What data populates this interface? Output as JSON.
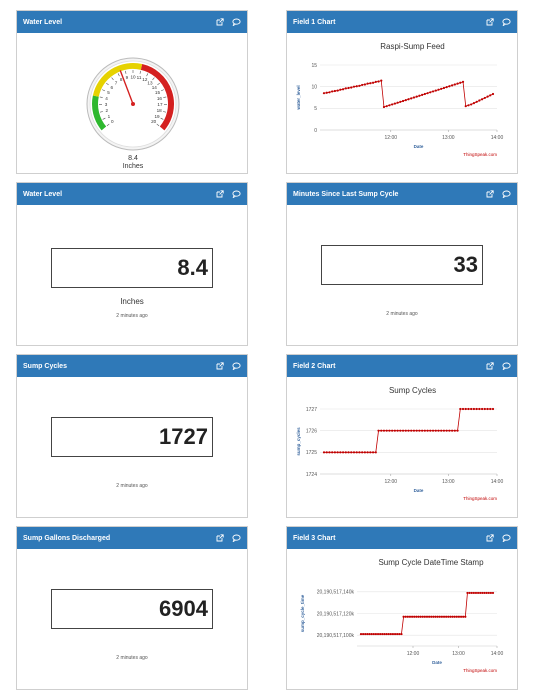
{
  "widgets": {
    "gauge": {
      "title": "Water Level",
      "value": "8.4",
      "units": "Inches",
      "ticks": [
        "0",
        "1",
        "2",
        "3",
        "4",
        "5",
        "6",
        "7",
        "8",
        "9",
        "10",
        "11",
        "12",
        "13",
        "14",
        "15",
        "16",
        "17",
        "18",
        "19",
        "20"
      ]
    },
    "field1": {
      "title": "Field 1 Chart",
      "chart_title": "Raspi-Sump Feed",
      "ylabel": "water_level",
      "xlabel": "Date",
      "credit": "ThingSpeak.com",
      "yticks": [
        "15",
        "10",
        "5",
        "0"
      ],
      "xticks": [
        "12:00",
        "13:00",
        "14:00"
      ]
    },
    "numeric_level": {
      "title": "Water Level",
      "value": "8.4",
      "units": "Inches",
      "ago": "2 minutes ago"
    },
    "minutes": {
      "title": "Minutes Since Last Sump Cycle",
      "value": "33",
      "ago": "2 minutes ago"
    },
    "cycles": {
      "title": "Sump Cycles",
      "value": "1727",
      "ago": "2 minutes ago"
    },
    "field2": {
      "title": "Field 2 Chart",
      "chart_title": "Sump Cycles",
      "ylabel": "sump_cycles",
      "xlabel": "Date",
      "credit": "ThingSpeak.com",
      "yticks": [
        "1727",
        "1726",
        "1725",
        "1724"
      ],
      "xticks": [
        "12:00",
        "13:00",
        "14:00"
      ]
    },
    "gallons": {
      "title": "Sump Gallons Discharged",
      "value": "6904",
      "ago": "2 minutes ago"
    },
    "field3": {
      "title": "Field 3 Chart",
      "chart_title": "Sump Cycle DateTime Stamp",
      "ylabel": "sump_cycle_time",
      "xlabel": "Date",
      "credit": "ThingSpeak.com",
      "yticks": [
        "20,190,517,140k",
        "20,190,517,120k",
        "20,190,517,100k"
      ],
      "xticks": [
        "12:00",
        "13:00",
        "14:00"
      ]
    }
  },
  "icons": {
    "external": "external-link-icon",
    "comment": "comment-icon"
  },
  "colors": {
    "header": "#2f79b8",
    "series": "#c00000",
    "green": "#2eb82e",
    "yellow": "#e6d200",
    "red": "#d42020"
  },
  "chart_data": [
    {
      "type": "line",
      "title": "Raspi-Sump Feed",
      "ylabel": "water_level",
      "xlabel": "Date",
      "ylim": [
        0,
        15
      ],
      "x_ticks": [
        "12:00",
        "13:00",
        "14:00"
      ],
      "series": [
        {
          "values": [
            8.5,
            8.6,
            8.7,
            8.9,
            9.0,
            9.1,
            9.3,
            9.4,
            9.6,
            9.7,
            9.8,
            10.0,
            10.1,
            10.2,
            10.4,
            10.5,
            10.7,
            10.8,
            10.9,
            11.1,
            11.2,
            11.4,
            5.3,
            5.5,
            5.7,
            5.9,
            6.1,
            6.3,
            6.5,
            6.7,
            6.9,
            7.1,
            7.3,
            7.5,
            7.7,
            7.9,
            8.1,
            8.3,
            8.5,
            8.7,
            8.9,
            9.1,
            9.3,
            9.5,
            9.7,
            9.9,
            10.1,
            10.3,
            10.5,
            10.7,
            10.9,
            11.1,
            5.5,
            5.7,
            5.9,
            6.2,
            6.5,
            6.8,
            7.1,
            7.4,
            7.7,
            8.0,
            8.3
          ]
        }
      ]
    },
    {
      "type": "line",
      "title": "Sump Cycles",
      "ylabel": "sump_cycles",
      "xlabel": "Date",
      "ylim": [
        1724,
        1727
      ],
      "x_ticks": [
        "12:00",
        "13:00",
        "14:00"
      ],
      "series": [
        {
          "values": [
            1725,
            1725,
            1725,
            1725,
            1725,
            1725,
            1725,
            1725,
            1725,
            1725,
            1725,
            1725,
            1725,
            1725,
            1725,
            1725,
            1725,
            1725,
            1725,
            1725,
            1726,
            1726,
            1726,
            1726,
            1726,
            1726,
            1726,
            1726,
            1726,
            1726,
            1726,
            1726,
            1726,
            1726,
            1726,
            1726,
            1726,
            1726,
            1726,
            1726,
            1726,
            1726,
            1726,
            1726,
            1726,
            1726,
            1726,
            1726,
            1726,
            1726,
            1727,
            1727,
            1727,
            1727,
            1727,
            1727,
            1727,
            1727,
            1727,
            1727,
            1727,
            1727,
            1727
          ]
        }
      ]
    },
    {
      "type": "line",
      "title": "Sump Cycle DateTime Stamp",
      "ylabel": "sump_cycle_time",
      "xlabel": "Date",
      "ylim": [
        20190517090000,
        20190517150000
      ],
      "x_ticks": [
        "12:00",
        "13:00",
        "14:00"
      ],
      "series": [
        {
          "values": [
            20190517101000,
            20190517101000,
            20190517101000,
            20190517101000,
            20190517101000,
            20190517101000,
            20190517101000,
            20190517101000,
            20190517101000,
            20190517101000,
            20190517101000,
            20190517101000,
            20190517101000,
            20190517101000,
            20190517101000,
            20190517101000,
            20190517101000,
            20190517101000,
            20190517101000,
            20190517101000,
            20190517117000,
            20190517117000,
            20190517117000,
            20190517117000,
            20190517117000,
            20190517117000,
            20190517117000,
            20190517117000,
            20190517117000,
            20190517117000,
            20190517117000,
            20190517117000,
            20190517117000,
            20190517117000,
            20190517117000,
            20190517117000,
            20190517117000,
            20190517117000,
            20190517117000,
            20190517117000,
            20190517117000,
            20190517117000,
            20190517117000,
            20190517117000,
            20190517117000,
            20190517117000,
            20190517117000,
            20190517117000,
            20190517117000,
            20190517117000,
            20190517139000,
            20190517139000,
            20190517139000,
            20190517139000,
            20190517139000,
            20190517139000,
            20190517139000,
            20190517139000,
            20190517139000,
            20190517139000,
            20190517139000,
            20190517139000,
            20190517139000
          ]
        }
      ]
    }
  ]
}
